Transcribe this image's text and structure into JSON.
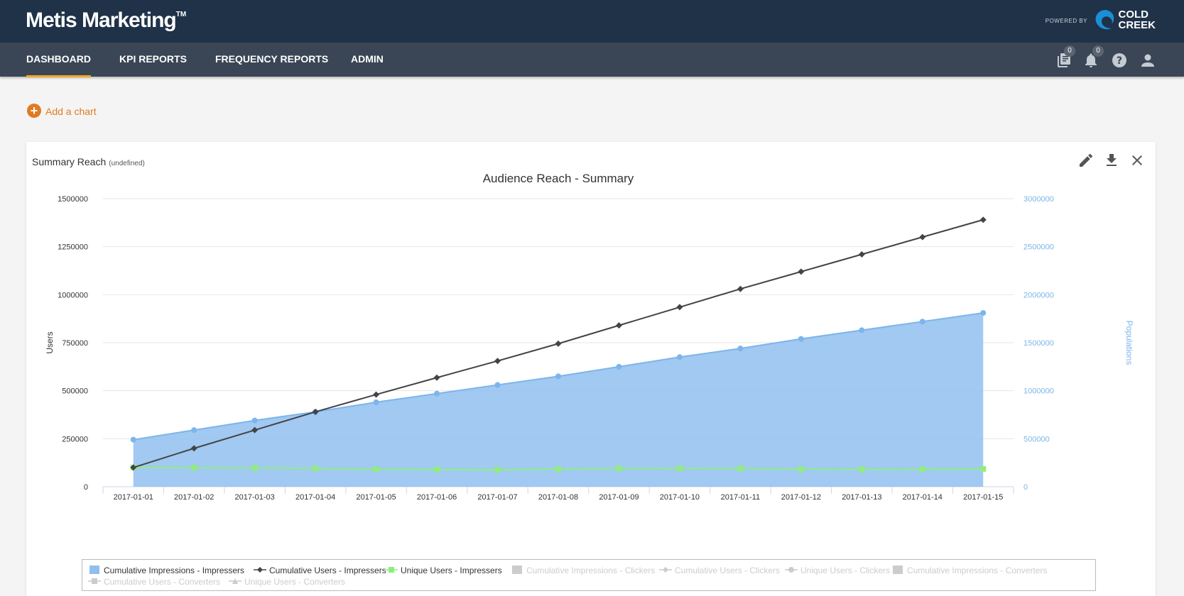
{
  "app": {
    "brand": "Metis Marketing",
    "trademark": "TM",
    "powered_by": "POWERED BY",
    "partner_line1": "COLD",
    "partner_line2": "CREEK"
  },
  "nav": {
    "items": [
      {
        "label": "DASHBOARD",
        "active": true
      },
      {
        "label": "KPI REPORTS",
        "active": false
      },
      {
        "label": "FREQUENCY REPORTS",
        "active": false
      },
      {
        "label": "ADMIN",
        "active": false
      }
    ]
  },
  "toolbar": {
    "reports_badge": "0",
    "notifications_badge": "0",
    "icons": [
      "reports-icon",
      "bell-icon",
      "help-icon",
      "user-icon"
    ]
  },
  "actions": {
    "add_chart": "Add a chart",
    "add_chart_icon": "plus-circle-icon"
  },
  "card": {
    "title": "Summary Reach",
    "subtitle": "(undefined)",
    "tools": [
      "pencil-icon",
      "download-icon",
      "close-icon"
    ]
  },
  "colors": {
    "topbar": "#1f3248",
    "navbar": "#3a4656",
    "accent": "#f5a623",
    "action": "#e07b24",
    "area": "#90bfee",
    "area_line": "#7cb5ec",
    "users_line": "#434348",
    "unique_line": "#90ed7d",
    "disabled": "#cccccc",
    "right_axis": "#7cb5ec"
  },
  "chart_data": {
    "type": "line",
    "title": "Audience Reach - Summary",
    "ylabel": "Users",
    "ylabel_right": "Populations",
    "ylim": [
      0,
      1500000
    ],
    "ylim_right": [
      0,
      3000000
    ],
    "yticks": [
      "0",
      "250000",
      "500000",
      "750000",
      "1000000",
      "1250000",
      "1500000"
    ],
    "yticks_right": [
      "0",
      "500000",
      "1000000",
      "1500000",
      "2000000",
      "2500000",
      "3000000"
    ],
    "grid": true,
    "legend_position": "bottom",
    "x": [
      "2017-01-01",
      "2017-01-02",
      "2017-01-03",
      "2017-01-04",
      "2017-01-05",
      "2017-01-06",
      "2017-01-07",
      "2017-01-08",
      "2017-01-09",
      "2017-01-10",
      "2017-01-11",
      "2017-01-12",
      "2017-01-13",
      "2017-01-14",
      "2017-01-15"
    ],
    "series": [
      {
        "name": "Cumulative Impressions - Impressers",
        "type": "area",
        "axis": "right",
        "visible": true,
        "values": [
          490000,
          590000,
          690000,
          780000,
          880000,
          970000,
          1060000,
          1150000,
          1250000,
          1350000,
          1440000,
          1540000,
          1630000,
          1720000,
          1810000
        ]
      },
      {
        "name": "Cumulative Users - Impressers",
        "type": "line",
        "axis": "left",
        "visible": true,
        "marker": "diamond",
        "values": [
          100000,
          200000,
          295000,
          390000,
          480000,
          568000,
          655000,
          745000,
          840000,
          935000,
          1030000,
          1120000,
          1210000,
          1300000,
          1390000
        ]
      },
      {
        "name": "Unique Users - Impressers",
        "type": "line",
        "axis": "left",
        "visible": true,
        "marker": "square",
        "values": [
          100000,
          99000,
          98000,
          95000,
          91000,
          89000,
          88000,
          92000,
          95000,
          96000,
          95000,
          91000,
          90000,
          91000,
          93000
        ]
      },
      {
        "name": "Cumulative Impressions - Clickers",
        "visible": false,
        "marker": "area"
      },
      {
        "name": "Cumulative Users - Clickers",
        "visible": false,
        "marker": "diamond-line"
      },
      {
        "name": "Unique Users - Clickers",
        "visible": false,
        "marker": "circle-line"
      },
      {
        "name": "Cumulative Impressions - Converters",
        "visible": false,
        "marker": "area"
      },
      {
        "name": "Cumulative Users - Converters",
        "visible": false,
        "marker": "square-line"
      },
      {
        "name": "Unique Users - Converters",
        "visible": false,
        "marker": "triangle-line"
      }
    ]
  }
}
